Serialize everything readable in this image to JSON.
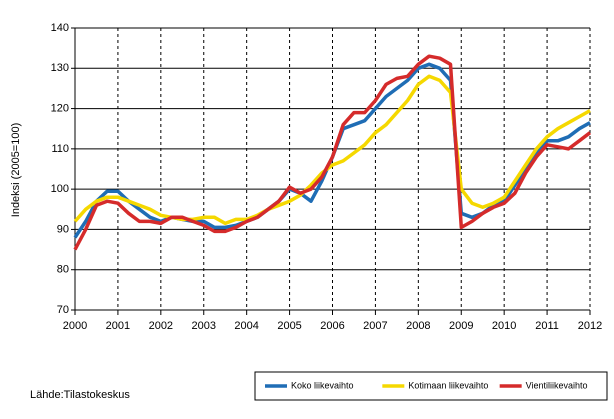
{
  "chart_data": {
    "type": "line",
    "y_label": "Indeksi (2005=100)",
    "source": "Lähde:Tilastokeskus",
    "x": [
      2000,
      2000.25,
      2000.5,
      2000.75,
      2001,
      2001.25,
      2001.5,
      2001.75,
      2002,
      2002.25,
      2002.5,
      2002.75,
      2003,
      2003.25,
      2003.5,
      2003.75,
      2004,
      2004.25,
      2004.5,
      2004.75,
      2005,
      2005.25,
      2005.5,
      2005.75,
      2006,
      2006.25,
      2006.5,
      2006.75,
      2007,
      2007.25,
      2007.5,
      2007.75,
      2008,
      2008.25,
      2008.5,
      2008.75,
      2009,
      2009.25,
      2009.5,
      2009.75,
      2010,
      2010.25,
      2010.5,
      2010.75,
      2011,
      2011.25,
      2011.5,
      2011.75,
      2012
    ],
    "series": [
      {
        "name": "Koko liikevaihto",
        "color": "#1f6db5",
        "values": [
          88,
          92,
          97,
          99.5,
          99.5,
          97,
          95,
          93,
          92,
          93,
          92.5,
          92,
          92,
          90.5,
          90.5,
          91,
          92,
          93,
          95,
          97,
          100,
          99,
          97,
          102,
          108,
          115,
          116,
          117,
          120,
          123,
          125,
          127,
          130,
          131,
          130,
          127,
          94,
          93,
          94,
          96,
          97,
          101,
          105,
          109,
          112,
          112,
          113,
          115,
          116.5
        ]
      },
      {
        "name": "Kotimaan liikevaihto",
        "color": "#f5d800",
        "values": [
          92,
          95,
          97,
          98,
          98,
          97,
          96,
          95,
          93.5,
          93,
          92.5,
          92.5,
          93,
          93,
          91.5,
          92.5,
          92.5,
          93.5,
          95,
          96,
          97,
          98.5,
          101,
          104,
          106,
          107,
          109,
          111,
          114,
          116,
          119,
          122,
          126,
          128,
          127,
          124,
          100,
          96.5,
          95.5,
          96.5,
          98,
          102,
          106,
          110,
          113,
          115,
          116.5,
          118,
          119.5
        ]
      },
      {
        "name": "Vientiliikevaihto",
        "color": "#d52b2b",
        "values": [
          85,
          90,
          96,
          97,
          96.5,
          94,
          92,
          92,
          91.5,
          93,
          93,
          92,
          91,
          89.5,
          89.5,
          90.5,
          92,
          93,
          95,
          97,
          100.5,
          99,
          100,
          103,
          108,
          116,
          119,
          119,
          122,
          126,
          127.5,
          128,
          131,
          133,
          132.5,
          131,
          90.5,
          92,
          94,
          95.5,
          96.5,
          99,
          104,
          108,
          111,
          110.5,
          110,
          112,
          114
        ]
      }
    ],
    "xlim": [
      2000,
      2012
    ],
    "xticks": [
      2000,
      2001,
      2002,
      2003,
      2004,
      2005,
      2006,
      2007,
      2008,
      2009,
      2010,
      2011,
      2012
    ],
    "ylim": [
      70,
      140
    ],
    "yticks": [
      70,
      80,
      90,
      100,
      110,
      120,
      130,
      140
    ],
    "grid": true,
    "legend": "bottom-right"
  }
}
